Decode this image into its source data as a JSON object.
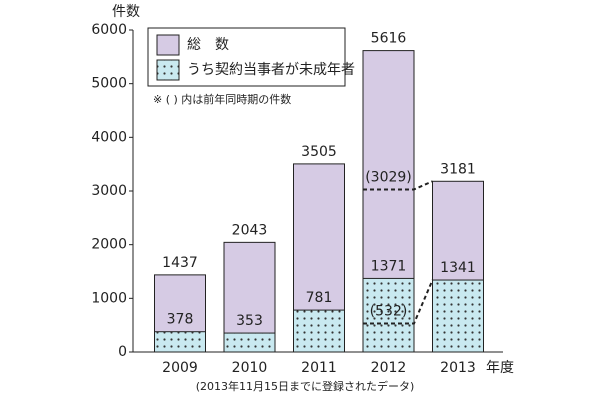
{
  "chart_data": {
    "type": "bar",
    "overlap": true,
    "y_title": "件数",
    "x_title": "年度",
    "note": "(2013年11月15日までに登録されたデータ)",
    "legend_note": "※ ( ) 内は前年同時期の件数",
    "categories": [
      "2009",
      "2010",
      "2011",
      "2012",
      "2013"
    ],
    "series": [
      {
        "name": "総　数",
        "color": "#d6cbe4",
        "values": [
          1437,
          2043,
          3505,
          5616,
          3181
        ],
        "prior_values": [
          null,
          null,
          null,
          3029,
          null
        ],
        "prior_value_labels": [
          null,
          null,
          null,
          "(3029)",
          null
        ]
      },
      {
        "name": "うち契約当事者が未成年者",
        "color": "#c9e9f0",
        "dotted": true,
        "values": [
          378,
          353,
          781,
          1371,
          1341
        ],
        "prior_values": [
          null,
          null,
          null,
          532,
          null
        ],
        "prior_value_labels": [
          null,
          null,
          null,
          "(532)",
          null
        ]
      }
    ],
    "ylim": [
      0,
      6000
    ],
    "yticks": [
      0,
      1000,
      2000,
      3000,
      4000,
      5000,
      6000
    ]
  }
}
